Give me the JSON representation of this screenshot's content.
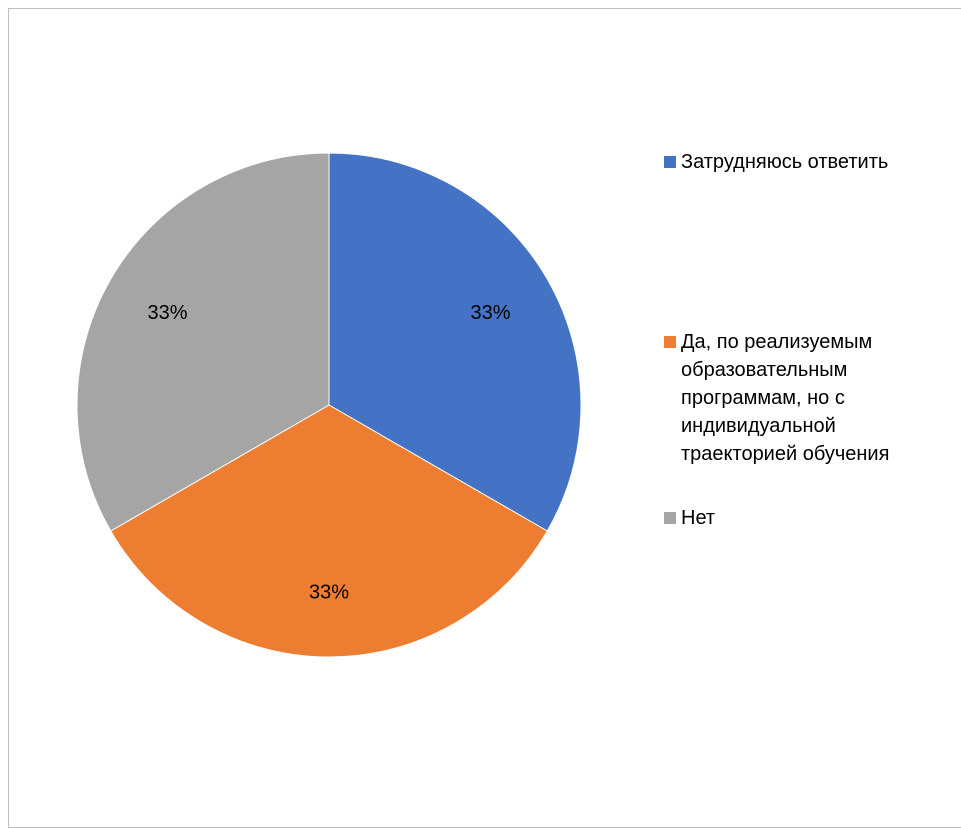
{
  "chart_data": {
    "type": "pie",
    "slices": [
      {
        "label": "Затрудняюсь ответить",
        "value": 33,
        "value_label": "33%",
        "color": "#4472C4"
      },
      {
        "label": "Да, по реализуемым образовательным программам, но с индивидуальной траекторией обучения",
        "value": 33,
        "value_label": "33%",
        "color": "#ED7D31"
      },
      {
        "label": "Нет",
        "value": 33,
        "value_label": "33%",
        "color": "#A5A5A5"
      }
    ],
    "title": "",
    "legend_position": "right",
    "start_angle_deg": 0,
    "direction": "clockwise"
  },
  "legend": {
    "items": [
      {
        "label": "Затрудняюсь ответить",
        "color": "#4472C4"
      },
      {
        "label": "Да, по реализуемым образовательным программам, но с индивидуальной траекторией обучения",
        "color": "#ED7D31"
      },
      {
        "label": "Нет",
        "color": "#A5A5A5"
      }
    ]
  }
}
